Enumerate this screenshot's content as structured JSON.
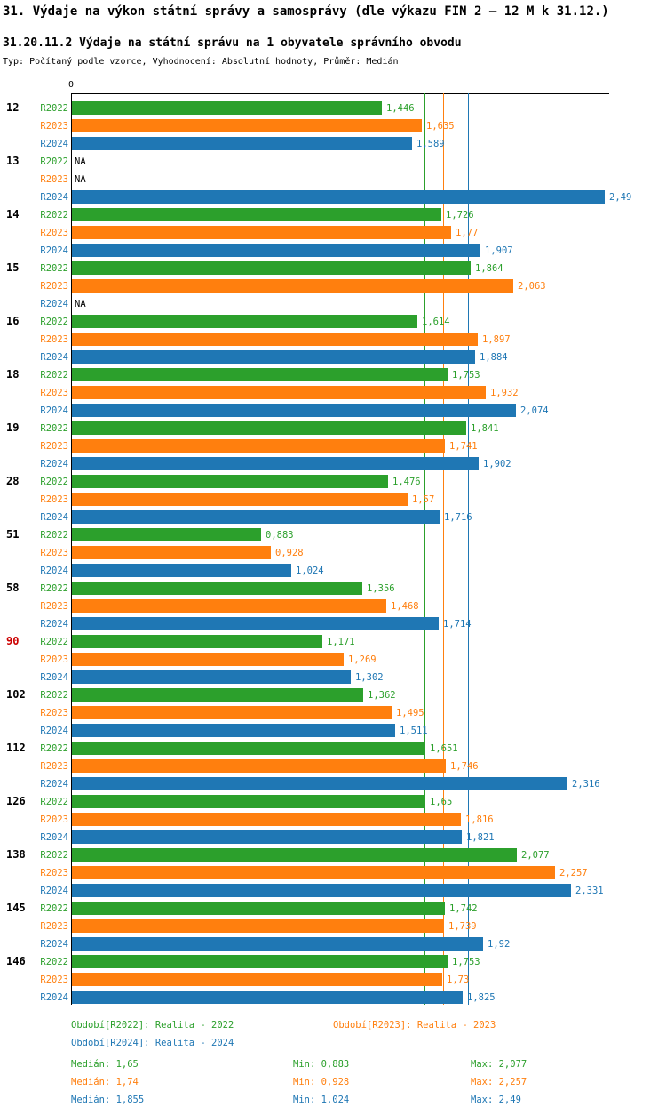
{
  "title": "31. Výdaje na výkon státní správy a samosprávy (dle výkazu FIN 2 – 12 M k 31.12.)",
  "subtitle": "31.20.11.2 Výdaje na státní správu na 1 obyvatele správního obvodu",
  "meta": "Typ: Počítaný podle vzorce, Vyhodnocení: Absolutní hodnoty, Průměr: Medián",
  "axis": {
    "zero_label": "0"
  },
  "colors": {
    "highlight_label": "#cc0000",
    "axis": "#000000",
    "background": "#ffffff"
  },
  "chart_data": {
    "type": "bar",
    "orientation": "horizontal",
    "title": "31.20.11.2 Výdaje na státní správu na 1 obyvatele správního obvodu",
    "xlabel": "",
    "ylabel": "",
    "xlim": [
      0,
      2.51
    ],
    "grid": false,
    "value_format": "czech-decimal-comma",
    "series_names": [
      "R2022",
      "R2023",
      "R2024"
    ],
    "series_colors": {
      "R2022": "#2ca02c",
      "R2023": "#ff7f0e",
      "R2024": "#1f77b4"
    },
    "medians": {
      "R2022": 1.65,
      "R2023": 1.74,
      "R2024": 1.855
    },
    "groups": [
      {
        "label": "12",
        "highlight": false,
        "display": [
          "1,446",
          "1,635",
          "1,589"
        ],
        "values": [
          1.446,
          1.635,
          1.589
        ]
      },
      {
        "label": "13",
        "highlight": false,
        "display": [
          "NA",
          "NA",
          "2,49"
        ],
        "values": [
          null,
          null,
          2.49
        ]
      },
      {
        "label": "14",
        "highlight": false,
        "display": [
          "1,726",
          "1,77",
          "1,907"
        ],
        "values": [
          1.726,
          1.77,
          1.907
        ]
      },
      {
        "label": "15",
        "highlight": false,
        "display": [
          "1,864",
          "2,063",
          "NA"
        ],
        "values": [
          1.864,
          2.063,
          null
        ]
      },
      {
        "label": "16",
        "highlight": false,
        "display": [
          "1,614",
          "1,897",
          "1,884"
        ],
        "values": [
          1.614,
          1.897,
          1.884
        ]
      },
      {
        "label": "18",
        "highlight": false,
        "display": [
          "1,753",
          "1,932",
          "2,074"
        ],
        "values": [
          1.753,
          1.932,
          2.074
        ]
      },
      {
        "label": "19",
        "highlight": false,
        "display": [
          "1,841",
          "1,741",
          "1,902"
        ],
        "values": [
          1.841,
          1.741,
          1.902
        ]
      },
      {
        "label": "28",
        "highlight": false,
        "display": [
          "1,476",
          "1,57",
          "1,716"
        ],
        "values": [
          1.476,
          1.57,
          1.716
        ]
      },
      {
        "label": "51",
        "highlight": false,
        "display": [
          "0,883",
          "0,928",
          "1,024"
        ],
        "values": [
          0.883,
          0.928,
          1.024
        ]
      },
      {
        "label": "58",
        "highlight": false,
        "display": [
          "1,356",
          "1,468",
          "1,714"
        ],
        "values": [
          1.356,
          1.468,
          1.714
        ]
      },
      {
        "label": "90",
        "highlight": true,
        "display": [
          "1,171",
          "1,269",
          "1,302"
        ],
        "values": [
          1.171,
          1.269,
          1.302
        ]
      },
      {
        "label": "102",
        "highlight": false,
        "display": [
          "1,362",
          "1,495",
          "1,511"
        ],
        "values": [
          1.362,
          1.495,
          1.511
        ]
      },
      {
        "label": "112",
        "highlight": false,
        "display": [
          "1,651",
          "1,746",
          "2,316"
        ],
        "values": [
          1.651,
          1.746,
          2.316
        ]
      },
      {
        "label": "126",
        "highlight": false,
        "display": [
          "1,65",
          "1,816",
          "1,821"
        ],
        "values": [
          1.65,
          1.816,
          1.821
        ]
      },
      {
        "label": "138",
        "highlight": false,
        "display": [
          "2,077",
          "2,257",
          "2,331"
        ],
        "values": [
          2.077,
          2.257,
          2.331
        ]
      },
      {
        "label": "145",
        "highlight": false,
        "display": [
          "1,742",
          "1,739",
          "1,92"
        ],
        "values": [
          1.742,
          1.739,
          1.92
        ]
      },
      {
        "label": "146",
        "highlight": false,
        "display": [
          "1,753",
          "1,73",
          "1,825"
        ],
        "values": [
          1.753,
          1.73,
          1.825
        ]
      }
    ]
  },
  "legend": {
    "items": [
      {
        "series": "R2022",
        "label": "Období[R2022]: Realita - 2022"
      },
      {
        "series": "R2023",
        "label": "Období[R2023]: Realita - 2023"
      },
      {
        "series": "R2024",
        "label": "Období[R2024]: Realita - 2024"
      }
    ],
    "stats": [
      {
        "series": "R2022",
        "median": "Medián: 1,65",
        "min": "Min: 0,883",
        "max": "Max: 2,077"
      },
      {
        "series": "R2023",
        "median": "Medián: 1,74",
        "min": "Min: 0,928",
        "max": "Max: 2,257"
      },
      {
        "series": "R2024",
        "median": "Medián: 1,855",
        "min": "Min: 1,024",
        "max": "Max: 2,49"
      }
    ]
  }
}
